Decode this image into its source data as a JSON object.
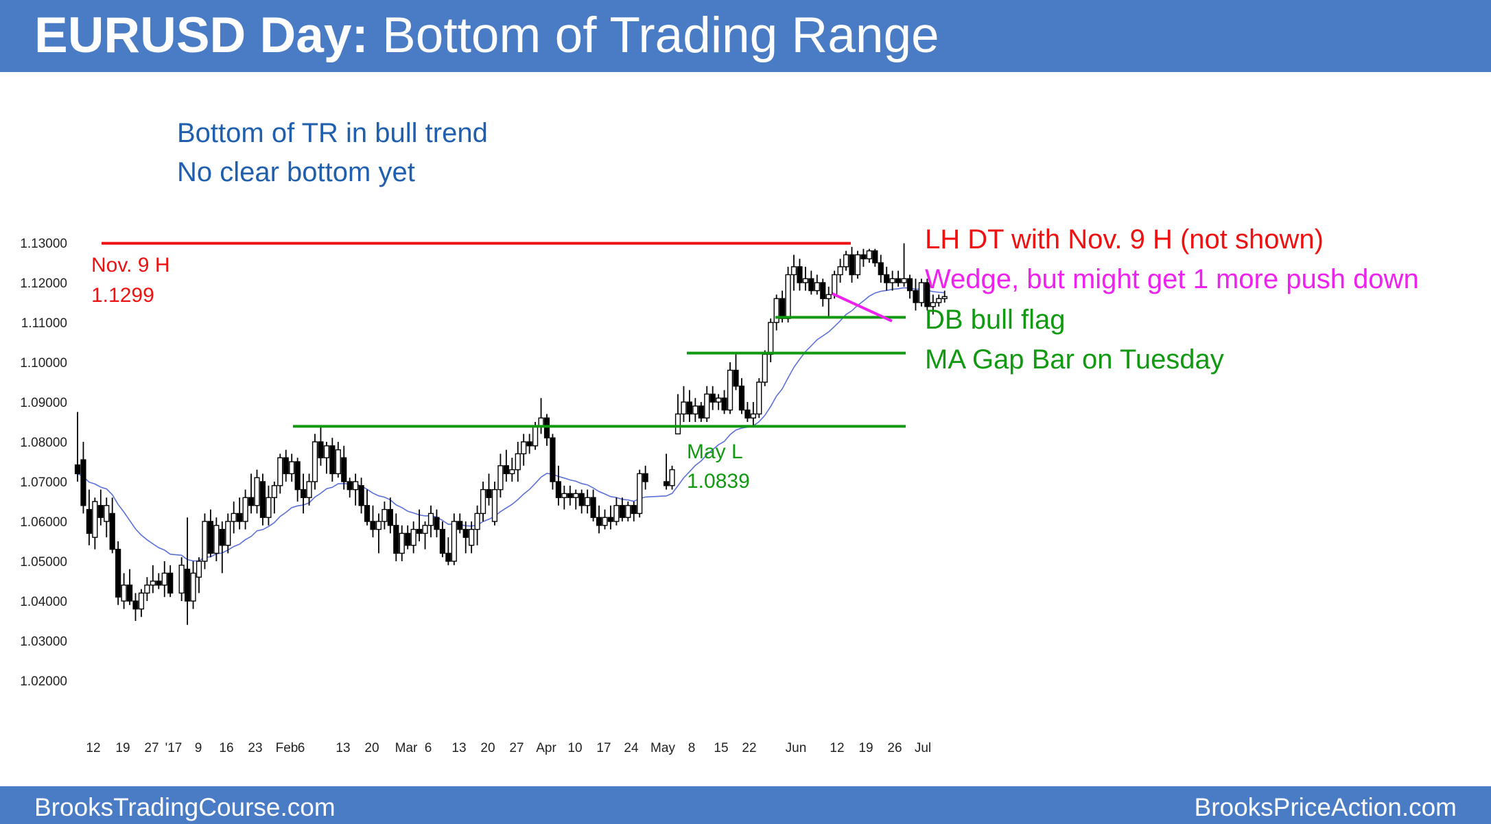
{
  "header": {
    "title_bold": "EURUSD Day:",
    "title_rest": " Bottom of Trading Range",
    "background": "#4a7cc6"
  },
  "footer": {
    "left": "BrooksTradingCourse.com",
    "right": "BrooksPriceAction.com"
  },
  "notes": {
    "line1": "Bottom of TR in bull trend",
    "line2": "No clear bottom yet"
  },
  "annotations": {
    "lh_dt": "LH DT with Nov. 9 H (not shown)",
    "wedge": "Wedge, but might get 1 more push down",
    "db_bull_flag": "DB bull flag",
    "ma_gap": "MA Gap Bar on Tuesday",
    "nov9_label": "Nov. 9 H",
    "nov9_value": "1.1299",
    "may_label": "May L",
    "may_value": "1.0839"
  },
  "colors": {
    "resistance": "#ee1111",
    "support": "#119911",
    "wedge": "#ee22ee",
    "moving_average": "#5b6fd8",
    "candle": "#000000",
    "text_blue": "#1f5fae"
  },
  "chart_data": {
    "type": "candlestick",
    "title": "EURUSD Day: Bottom of Trading Range",
    "ylim": [
      1.015,
      1.135
    ],
    "y_ticks": [
      "1.13000",
      "1.12000",
      "1.11000",
      "1.10000",
      "1.09000",
      "1.08000",
      "1.07000",
      "1.06000",
      "1.05000",
      "1.04000",
      "1.03000",
      "1.02000"
    ],
    "x_ticks": [
      "12",
      "19",
      "27",
      "'17",
      "9",
      "16",
      "23",
      "Feb",
      "6",
      "13",
      "20",
      "Mar",
      "6",
      "13",
      "20",
      "27",
      "Apr",
      "10",
      "17",
      "24",
      "May",
      "8",
      "15",
      "22",
      "Jun",
      "12",
      "19",
      "26",
      "Jul"
    ],
    "grid": false,
    "moving_average": "20-bar EMA",
    "horizontal_lines": [
      {
        "label": "Nov. 9 H",
        "value": 1.1299,
        "color": "#ee1111"
      },
      {
        "label": "DB bull flag",
        "value": 1.1113,
        "color": "#119911"
      },
      {
        "label": "MA Gap Bar on Tuesday",
        "value": 1.1023,
        "color": "#119911"
      },
      {
        "label": "May L",
        "value": 1.0839,
        "color": "#119911"
      }
    ],
    "candles": [
      {
        "o": 1.0742,
        "h": 1.0875,
        "l": 1.07,
        "c": 1.072
      },
      {
        "o": 1.0755,
        "h": 1.08,
        "l": 1.062,
        "c": 1.064
      },
      {
        "o": 1.063,
        "h": 1.068,
        "l": 1.054,
        "c": 1.057
      },
      {
        "o": 1.056,
        "h": 1.066,
        "l": 1.053,
        "c": 1.065
      },
      {
        "o": 1.064,
        "h": 1.068,
        "l": 1.059,
        "c": 1.061
      },
      {
        "o": 1.06,
        "h": 1.066,
        "l": 1.056,
        "c": 1.064
      },
      {
        "o": 1.062,
        "h": 1.066,
        "l": 1.052,
        "c": 1.053
      },
      {
        "o": 1.053,
        "h": 1.055,
        "l": 1.039,
        "c": 1.041
      },
      {
        "o": 1.04,
        "h": 1.047,
        "l": 1.038,
        "c": 1.044
      },
      {
        "o": 1.044,
        "h": 1.048,
        "l": 1.039,
        "c": 1.04
      },
      {
        "o": 1.04,
        "h": 1.042,
        "l": 1.035,
        "c": 1.038
      },
      {
        "o": 1.038,
        "h": 1.043,
        "l": 1.036,
        "c": 1.042
      },
      {
        "o": 1.042,
        "h": 1.046,
        "l": 1.04,
        "c": 1.044
      },
      {
        "o": 1.044,
        "h": 1.049,
        "l": 1.042,
        "c": 1.045
      },
      {
        "o": 1.045,
        "h": 1.047,
        "l": 1.043,
        "c": 1.044
      },
      {
        "o": 1.044,
        "h": 1.05,
        "l": 1.041,
        "c": 1.047
      },
      {
        "o": 1.047,
        "h": 1.049,
        "l": 1.041,
        "c": 1.042
      },
      {
        "o": 1.042,
        "h": 1.051,
        "l": 1.04,
        "c": 1.049
      },
      {
        "o": 1.048,
        "h": 1.061,
        "l": 1.034,
        "c": 1.04
      },
      {
        "o": 1.04,
        "h": 1.05,
        "l": 1.038,
        "c": 1.047
      },
      {
        "o": 1.046,
        "h": 1.051,
        "l": 1.042,
        "c": 1.05
      },
      {
        "o": 1.05,
        "h": 1.062,
        "l": 1.048,
        "c": 1.06
      },
      {
        "o": 1.06,
        "h": 1.063,
        "l": 1.051,
        "c": 1.052
      },
      {
        "o": 1.052,
        "h": 1.061,
        "l": 1.05,
        "c": 1.059
      },
      {
        "o": 1.058,
        "h": 1.06,
        "l": 1.047,
        "c": 1.054
      },
      {
        "o": 1.054,
        "h": 1.062,
        "l": 1.052,
        "c": 1.06
      },
      {
        "o": 1.06,
        "h": 1.065,
        "l": 1.057,
        "c": 1.062
      },
      {
        "o": 1.062,
        "h": 1.066,
        "l": 1.058,
        "c": 1.06
      },
      {
        "o": 1.06,
        "h": 1.068,
        "l": 1.058,
        "c": 1.066
      },
      {
        "o": 1.066,
        "h": 1.072,
        "l": 1.062,
        "c": 1.064
      },
      {
        "o": 1.064,
        "h": 1.073,
        "l": 1.062,
        "c": 1.071
      },
      {
        "o": 1.07,
        "h": 1.072,
        "l": 1.059,
        "c": 1.061
      },
      {
        "o": 1.061,
        "h": 1.069,
        "l": 1.059,
        "c": 1.066
      },
      {
        "o": 1.066,
        "h": 1.07,
        "l": 1.062,
        "c": 1.069
      },
      {
        "o": 1.069,
        "h": 1.077,
        "l": 1.067,
        "c": 1.076
      },
      {
        "o": 1.076,
        "h": 1.078,
        "l": 1.07,
        "c": 1.072
      },
      {
        "o": 1.072,
        "h": 1.077,
        "l": 1.07,
        "c": 1.075
      },
      {
        "o": 1.075,
        "h": 1.076,
        "l": 1.065,
        "c": 1.068
      },
      {
        "o": 1.068,
        "h": 1.072,
        "l": 1.062,
        "c": 1.066
      },
      {
        "o": 1.066,
        "h": 1.072,
        "l": 1.064,
        "c": 1.07
      },
      {
        "o": 1.07,
        "h": 1.082,
        "l": 1.068,
        "c": 1.08
      },
      {
        "o": 1.08,
        "h": 1.084,
        "l": 1.074,
        "c": 1.076
      },
      {
        "o": 1.076,
        "h": 1.08,
        "l": 1.072,
        "c": 1.079
      },
      {
        "o": 1.079,
        "h": 1.081,
        "l": 1.07,
        "c": 1.072
      },
      {
        "o": 1.072,
        "h": 1.08,
        "l": 1.071,
        "c": 1.078
      },
      {
        "o": 1.076,
        "h": 1.079,
        "l": 1.068,
        "c": 1.07
      },
      {
        "o": 1.07,
        "h": 1.071,
        "l": 1.066,
        "c": 1.068
      },
      {
        "o": 1.068,
        "h": 1.072,
        "l": 1.064,
        "c": 1.07
      },
      {
        "o": 1.069,
        "h": 1.071,
        "l": 1.062,
        "c": 1.064
      },
      {
        "o": 1.064,
        "h": 1.068,
        "l": 1.059,
        "c": 1.06
      },
      {
        "o": 1.06,
        "h": 1.064,
        "l": 1.056,
        "c": 1.058
      },
      {
        "o": 1.058,
        "h": 1.062,
        "l": 1.052,
        "c": 1.06
      },
      {
        "o": 1.06,
        "h": 1.065,
        "l": 1.058,
        "c": 1.063
      },
      {
        "o": 1.063,
        "h": 1.066,
        "l": 1.057,
        "c": 1.059
      },
      {
        "o": 1.059,
        "h": 1.062,
        "l": 1.05,
        "c": 1.052
      },
      {
        "o": 1.052,
        "h": 1.059,
        "l": 1.05,
        "c": 1.057
      },
      {
        "o": 1.057,
        "h": 1.059,
        "l": 1.053,
        "c": 1.054
      },
      {
        "o": 1.054,
        "h": 1.06,
        "l": 1.052,
        "c": 1.058
      },
      {
        "o": 1.058,
        "h": 1.063,
        "l": 1.055,
        "c": 1.057
      },
      {
        "o": 1.057,
        "h": 1.06,
        "l": 1.053,
        "c": 1.059
      },
      {
        "o": 1.059,
        "h": 1.064,
        "l": 1.056,
        "c": 1.062
      },
      {
        "o": 1.061,
        "h": 1.063,
        "l": 1.056,
        "c": 1.058
      },
      {
        "o": 1.058,
        "h": 1.06,
        "l": 1.051,
        "c": 1.052
      },
      {
        "o": 1.052,
        "h": 1.056,
        "l": 1.049,
        "c": 1.05
      },
      {
        "o": 1.05,
        "h": 1.062,
        "l": 1.049,
        "c": 1.06
      },
      {
        "o": 1.06,
        "h": 1.062,
        "l": 1.057,
        "c": 1.058
      },
      {
        "o": 1.058,
        "h": 1.06,
        "l": 1.052,
        "c": 1.056
      },
      {
        "o": 1.054,
        "h": 1.06,
        "l": 1.052,
        "c": 1.058
      },
      {
        "o": 1.058,
        "h": 1.064,
        "l": 1.054,
        "c": 1.062
      },
      {
        "o": 1.062,
        "h": 1.07,
        "l": 1.06,
        "c": 1.068
      },
      {
        "o": 1.068,
        "h": 1.072,
        "l": 1.064,
        "c": 1.066
      },
      {
        "o": 1.06,
        "h": 1.07,
        "l": 1.059,
        "c": 1.068
      },
      {
        "o": 1.068,
        "h": 1.077,
        "l": 1.066,
        "c": 1.074
      },
      {
        "o": 1.074,
        "h": 1.078,
        "l": 1.07,
        "c": 1.072
      },
      {
        "o": 1.072,
        "h": 1.076,
        "l": 1.07,
        "c": 1.073
      },
      {
        "o": 1.073,
        "h": 1.08,
        "l": 1.07,
        "c": 1.077
      },
      {
        "o": 1.077,
        "h": 1.082,
        "l": 1.074,
        "c": 1.08
      },
      {
        "o": 1.08,
        "h": 1.082,
        "l": 1.077,
        "c": 1.079
      },
      {
        "o": 1.079,
        "h": 1.085,
        "l": 1.078,
        "c": 1.084
      },
      {
        "o": 1.084,
        "h": 1.091,
        "l": 1.082,
        "c": 1.086
      },
      {
        "o": 1.086,
        "h": 1.087,
        "l": 1.079,
        "c": 1.081
      },
      {
        "o": 1.081,
        "h": 1.082,
        "l": 1.068,
        "c": 1.07
      },
      {
        "o": 1.07,
        "h": 1.074,
        "l": 1.064,
        "c": 1.066
      },
      {
        "o": 1.066,
        "h": 1.069,
        "l": 1.063,
        "c": 1.067
      },
      {
        "o": 1.067,
        "h": 1.069,
        "l": 1.064,
        "c": 1.066
      },
      {
        "o": 1.066,
        "h": 1.068,
        "l": 1.063,
        "c": 1.067
      },
      {
        "o": 1.067,
        "h": 1.068,
        "l": 1.062,
        "c": 1.064
      },
      {
        "o": 1.064,
        "h": 1.068,
        "l": 1.062,
        "c": 1.066
      },
      {
        "o": 1.066,
        "h": 1.068,
        "l": 1.06,
        "c": 1.061
      },
      {
        "o": 1.061,
        "h": 1.064,
        "l": 1.057,
        "c": 1.059
      },
      {
        "o": 1.059,
        "h": 1.063,
        "l": 1.058,
        "c": 1.061
      },
      {
        "o": 1.061,
        "h": 1.064,
        "l": 1.058,
        "c": 1.06
      },
      {
        "o": 1.06,
        "h": 1.066,
        "l": 1.059,
        "c": 1.064
      },
      {
        "o": 1.064,
        "h": 1.066,
        "l": 1.06,
        "c": 1.061
      },
      {
        "o": 1.061,
        "h": 1.065,
        "l": 1.06,
        "c": 1.064
      },
      {
        "o": 1.064,
        "h": 1.065,
        "l": 1.06,
        "c": 1.062
      },
      {
        "o": 1.062,
        "h": 1.073,
        "l": 1.061,
        "c": 1.072
      },
      {
        "o": 1.072,
        "h": 1.074,
        "l": 1.068,
        "c": 1.07
      },
      {
        "o": 1.07,
        "h": 1.077,
        "l": 1.068,
        "c": 1.069
      },
      {
        "o": 1.069,
        "h": 1.074,
        "l": 1.068,
        "c": 1.073
      },
      {
        "o": 1.082,
        "h": 1.092,
        "l": 1.082,
        "c": 1.087
      },
      {
        "o": 1.087,
        "h": 1.094,
        "l": 1.085,
        "c": 1.09
      },
      {
        "o": 1.09,
        "h": 1.093,
        "l": 1.085,
        "c": 1.087
      },
      {
        "o": 1.087,
        "h": 1.091,
        "l": 1.085,
        "c": 1.089
      },
      {
        "o": 1.089,
        "h": 1.09,
        "l": 1.085,
        "c": 1.086
      },
      {
        "o": 1.086,
        "h": 1.094,
        "l": 1.085,
        "c": 1.092
      },
      {
        "o": 1.092,
        "h": 1.094,
        "l": 1.088,
        "c": 1.09
      },
      {
        "o": 1.09,
        "h": 1.092,
        "l": 1.088,
        "c": 1.091
      },
      {
        "o": 1.091,
        "h": 1.093,
        "l": 1.087,
        "c": 1.088
      },
      {
        "o": 1.088,
        "h": 1.1,
        "l": 1.087,
        "c": 1.098
      },
      {
        "o": 1.098,
        "h": 1.1023,
        "l": 1.093,
        "c": 1.094
      },
      {
        "o": 1.094,
        "h": 1.096,
        "l": 1.087,
        "c": 1.088
      },
      {
        "o": 1.088,
        "h": 1.09,
        "l": 1.085,
        "c": 1.086
      },
      {
        "o": 1.086,
        "h": 1.09,
        "l": 1.0839,
        "c": 1.087
      },
      {
        "o": 1.087,
        "h": 1.096,
        "l": 1.086,
        "c": 1.095
      },
      {
        "o": 1.095,
        "h": 1.103,
        "l": 1.094,
        "c": 1.102
      },
      {
        "o": 1.102,
        "h": 1.111,
        "l": 1.1,
        "c": 1.11
      },
      {
        "o": 1.11,
        "h": 1.117,
        "l": 1.108,
        "c": 1.116
      },
      {
        "o": 1.116,
        "h": 1.118,
        "l": 1.11,
        "c": 1.111
      },
      {
        "o": 1.111,
        "h": 1.124,
        "l": 1.11,
        "c": 1.122
      },
      {
        "o": 1.122,
        "h": 1.127,
        "l": 1.118,
        "c": 1.124
      },
      {
        "o": 1.124,
        "h": 1.126,
        "l": 1.118,
        "c": 1.12
      },
      {
        "o": 1.12,
        "h": 1.124,
        "l": 1.118,
        "c": 1.121
      },
      {
        "o": 1.121,
        "h": 1.123,
        "l": 1.117,
        "c": 1.118
      },
      {
        "o": 1.118,
        "h": 1.122,
        "l": 1.117,
        "c": 1.12
      },
      {
        "o": 1.12,
        "h": 1.121,
        "l": 1.114,
        "c": 1.116
      },
      {
        "o": 1.116,
        "h": 1.119,
        "l": 1.111,
        "c": 1.117
      },
      {
        "o": 1.117,
        "h": 1.123,
        "l": 1.116,
        "c": 1.122
      },
      {
        "o": 1.122,
        "h": 1.126,
        "l": 1.12,
        "c": 1.124
      },
      {
        "o": 1.124,
        "h": 1.128,
        "l": 1.123,
        "c": 1.127
      },
      {
        "o": 1.127,
        "h": 1.129,
        "l": 1.12,
        "c": 1.122
      },
      {
        "o": 1.122,
        "h": 1.128,
        "l": 1.121,
        "c": 1.127
      },
      {
        "o": 1.127,
        "h": 1.1285,
        "l": 1.124,
        "c": 1.126
      },
      {
        "o": 1.126,
        "h": 1.1285,
        "l": 1.125,
        "c": 1.128
      },
      {
        "o": 1.128,
        "h": 1.1285,
        "l": 1.124,
        "c": 1.125
      },
      {
        "o": 1.125,
        "h": 1.127,
        "l": 1.12,
        "c": 1.122
      },
      {
        "o": 1.122,
        "h": 1.124,
        "l": 1.118,
        "c": 1.12
      },
      {
        "o": 1.12,
        "h": 1.123,
        "l": 1.118,
        "c": 1.121
      },
      {
        "o": 1.121,
        "h": 1.123,
        "l": 1.119,
        "c": 1.12
      },
      {
        "o": 1.12,
        "h": 1.1299,
        "l": 1.119,
        "c": 1.121
      },
      {
        "o": 1.121,
        "h": 1.122,
        "l": 1.116,
        "c": 1.118
      },
      {
        "o": 1.118,
        "h": 1.121,
        "l": 1.113,
        "c": 1.115
      },
      {
        "o": 1.115,
        "h": 1.121,
        "l": 1.114,
        "c": 1.12
      },
      {
        "o": 1.12,
        "h": 1.121,
        "l": 1.113,
        "c": 1.114
      },
      {
        "o": 1.114,
        "h": 1.117,
        "l": 1.112,
        "c": 1.115
      },
      {
        "o": 1.115,
        "h": 1.117,
        "l": 1.114,
        "c": 1.116
      },
      {
        "o": 1.116,
        "h": 1.118,
        "l": 1.115,
        "c": 1.1165
      }
    ]
  }
}
